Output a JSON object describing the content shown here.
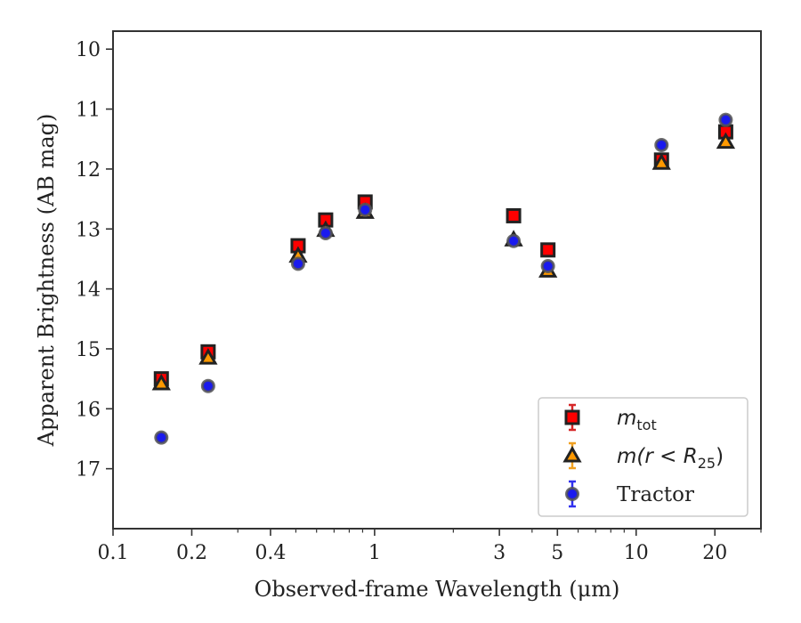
{
  "chart_data": {
    "type": "scatter",
    "xlabel": "Observed-frame Wavelength (μm)",
    "ylabel": "Apparent Brightness (AB mag)",
    "x_scale": "log",
    "xlim": [
      0.1,
      30
    ],
    "ylim": [
      18.0,
      9.7
    ],
    "y_inverted": true,
    "x_ticks": [
      {
        "value": 0.1,
        "label": "0.1"
      },
      {
        "value": 0.2,
        "label": "0.2"
      },
      {
        "value": 0.4,
        "label": "0.4"
      },
      {
        "value": 1,
        "label": "1"
      },
      {
        "value": 3,
        "label": "3"
      },
      {
        "value": 5,
        "label": "5"
      },
      {
        "value": 10,
        "label": "10"
      },
      {
        "value": 20,
        "label": "20"
      }
    ],
    "x_minor_ticks": [
      0.3,
      0.5,
      0.6,
      0.7,
      0.8,
      0.9,
      2,
      4,
      6,
      7,
      8,
      9,
      30
    ],
    "y_ticks": [
      {
        "value": 10,
        "label": "10"
      },
      {
        "value": 11,
        "label": "11"
      },
      {
        "value": 12,
        "label": "12"
      },
      {
        "value": 13,
        "label": "13"
      },
      {
        "value": 14,
        "label": "14"
      },
      {
        "value": 15,
        "label": "15"
      },
      {
        "value": 16,
        "label": "16"
      },
      {
        "value": 17,
        "label": "17"
      }
    ],
    "grid": false,
    "legend_position": "lower-right",
    "series": [
      {
        "name_main": "m",
        "name_sub": "tot",
        "marker": "square",
        "color": "#ff0000",
        "edge_color": "#222222",
        "error_color": "#d62728",
        "x": [
          0.153,
          0.231,
          0.51,
          0.65,
          0.92,
          3.4,
          4.6,
          12.5,
          22.0
        ],
        "y": [
          15.5,
          15.05,
          13.28,
          12.85,
          12.55,
          12.78,
          13.35,
          11.85,
          11.38
        ]
      },
      {
        "name_main": "m(r < R",
        "name_sub": "25",
        "name_tail": ")",
        "marker": "triangle",
        "color": "#ff9900",
        "edge_color": "#222222",
        "error_color": "#f0a020",
        "x": [
          0.153,
          0.231,
          0.51,
          0.65,
          0.92,
          3.4,
          4.6,
          12.5,
          22.0
        ],
        "y": [
          15.58,
          15.15,
          13.45,
          13.02,
          12.72,
          13.18,
          13.7,
          11.9,
          11.55
        ]
      },
      {
        "name": "Tractor",
        "marker": "circle",
        "color": "#1a1aee",
        "edge_color": "#555555",
        "error_color": "#3030ee",
        "x": [
          0.153,
          0.231,
          0.51,
          0.65,
          0.92,
          3.4,
          4.6,
          12.5,
          22.0
        ],
        "y": [
          16.48,
          15.62,
          13.58,
          13.07,
          12.68,
          13.2,
          13.62,
          11.6,
          11.18
        ]
      }
    ]
  }
}
